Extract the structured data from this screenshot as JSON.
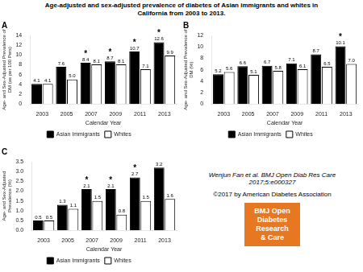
{
  "chart_data": [
    {
      "type": "bar",
      "title": "Age-adjusted and sex-adjusted prevalence of diabetes of Asian immigrants and whites in\nCalifornia from 2003 to 2013.",
      "subtitle": "A",
      "xlabel": "Calendar Year",
      "ylabel": "Age- and Sex-Adjusted Prevalence of\nDM (as per 100 Pers)",
      "categories": [
        "2003",
        "2005",
        "2007",
        "2009",
        "2011",
        "2013"
      ],
      "series": [
        {
          "name": "Asian Immigrants",
          "color": "#000000",
          "values": [
            4.1,
            7.6,
            8.4,
            8.7,
            10.7,
            12.6
          ],
          "value_labels": [
            "4.1",
            "7.6",
            "8.4",
            "8.7",
            "10.7",
            "12.6"
          ],
          "marks": [
            null,
            null,
            "*",
            "*",
            "*",
            "*"
          ]
        },
        {
          "name": "Whites",
          "color": "#ffffff",
          "values": [
            4.1,
            5.0,
            8.1,
            8.1,
            7.1,
            9.9
          ],
          "value_labels": [
            "4.1",
            "5.0",
            "8.1",
            "8.1",
            "7.1",
            "9.9"
          ]
        }
      ],
      "ylim": [
        0,
        14
      ],
      "yticks": [
        0,
        2,
        4,
        6,
        8,
        10,
        12,
        14
      ],
      "grid": false,
      "legend": "bottom",
      "data_labels": true
    },
    {
      "type": "bar",
      "subtitle": "B",
      "xlabel": "Calendar Year",
      "ylabel": "Age- and Sex-Adjusted Prevalence of\nDM (%)",
      "categories": [
        "2003",
        "2005",
        "2007",
        "2009",
        "2011",
        "2013"
      ],
      "series": [
        {
          "name": "Asian Immigrants",
          "color": "#000000",
          "values": [
            5.2,
            6.6,
            6.7,
            7.1,
            8.7,
            10.1
          ],
          "value_labels": [
            "5.2",
            "6.6",
            "6.7",
            "7.1",
            "8.7",
            "10.1"
          ],
          "marks": [
            null,
            null,
            null,
            null,
            null,
            "*"
          ]
        },
        {
          "name": "Whites",
          "color": "#ffffff",
          "values": [
            5.6,
            5.1,
            5.8,
            6.1,
            6.5,
            7.0
          ],
          "value_labels": [
            "5.6",
            "5.1",
            "5.8",
            "6.1",
            "6.5",
            "7.0"
          ]
        }
      ],
      "ylim": [
        0,
        12
      ],
      "yticks": [
        0,
        2,
        4,
        6,
        8,
        10,
        12
      ],
      "grid": false,
      "legend": "bottom",
      "data_labels": true
    },
    {
      "type": "bar",
      "subtitle": "C",
      "xlabel": "Calendar Year",
      "ylabel": "Age- and Sex-Adjusted\nPrevalence (%)",
      "categories": [
        "2003",
        "2005",
        "2007",
        "2009",
        "2011",
        "2013"
      ],
      "series": [
        {
          "name": "Asian Immigrants",
          "color": "#000000",
          "values": [
            0.5,
            1.3,
            2.1,
            2.1,
            2.7,
            3.2
          ],
          "value_labels": [
            "0.5",
            "1.3",
            "2.1",
            "2.1",
            "2.7",
            "3.2"
          ],
          "marks": [
            null,
            null,
            "*",
            "*",
            "*",
            null
          ]
        },
        {
          "name": "Whites",
          "color": "#ffffff",
          "values": [
            0.5,
            1.1,
            1.5,
            0.8,
            1.5,
            1.6
          ],
          "value_labels": [
            "0.5",
            "1.1",
            "1.5",
            "0.8",
            "1.5",
            "1.6"
          ]
        }
      ],
      "ylim": [
        0,
        3.5
      ],
      "yticks": [
        {
          "value": 0,
          "label": "0.0"
        },
        0.5,
        {
          "value": 1,
          "label": "1.0"
        },
        1.5,
        {
          "value": 2,
          "label": "2.0"
        },
        2.5,
        {
          "value": 3,
          "label": "3.0"
        },
        3.5
      ],
      "grid": false,
      "legend": "bottom",
      "data_labels": true,
      "annotations": [
        {
          "text": "Wenjun Fan et al. BMJ Open Diab Res Care 2017;5:e000327"
        },
        {
          "text": "©2017 by American Diabetes Association"
        },
        {
          "text": "BMJ Open\nDiabetes\nResearch\n& Care",
          "color": "#E87722"
        }
      ]
    }
  ]
}
